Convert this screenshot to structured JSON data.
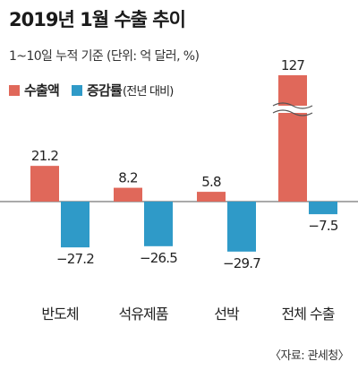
{
  "title": "2019년 1월 수출 추이",
  "subtitle": "1~10일 누적 기준 (단위: 억 달러, %)",
  "legend": {
    "export_label": "수출액",
    "growth_label": "증감률",
    "growth_note": "(전년 대비)"
  },
  "source": "〈자료: 관세청〉",
  "colors": {
    "export": "#e0685a",
    "growth": "#2f9ac8"
  },
  "chart_data": {
    "type": "bar",
    "categories": [
      "반도체",
      "석유제품",
      "선박",
      "전체 수출"
    ],
    "series": [
      {
        "name": "수출액",
        "values": [
          21.2,
          8.2,
          5.8,
          127
        ]
      },
      {
        "name": "증감률",
        "values": [
          -27.2,
          -26.5,
          -29.7,
          -7.5
        ]
      }
    ],
    "value_labels": [
      [
        "21.2",
        "8.2",
        "5.8",
        "127"
      ],
      [
        "−27.2",
        "−26.5",
        "−29.7",
        "−7.5"
      ]
    ],
    "axis_break": {
      "category_index": 3,
      "series_index": 0
    },
    "legend_position": "top-left",
    "grid": false
  }
}
